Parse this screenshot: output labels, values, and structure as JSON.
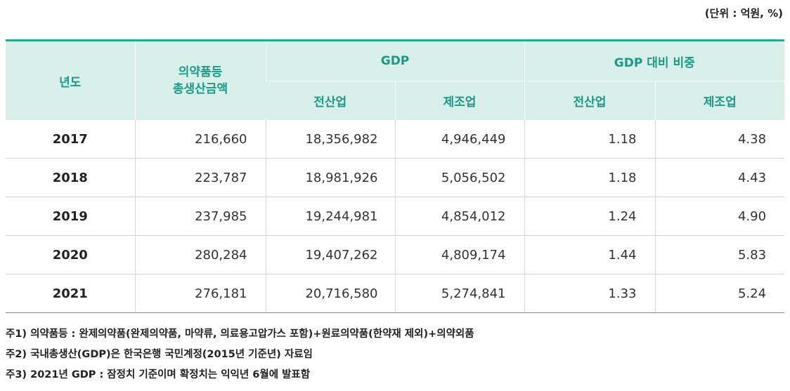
{
  "unit": "(단위 : 억원, %)",
  "table": {
    "headers": {
      "year": "년도",
      "pharma_line1": "의약품등",
      "pharma_line2": "총생산금액",
      "gdp": "GDP",
      "gdp_ratio": "GDP 대비 비중",
      "all_industry": "전산업",
      "manufacturing": "제조업"
    },
    "rows": [
      {
        "year": "2017",
        "pharma": "216,660",
        "gdp_all": "18,356,982",
        "gdp_mfg": "4,946,449",
        "ratio_all": "1.18",
        "ratio_mfg": "4.38"
      },
      {
        "year": "2018",
        "pharma": "223,787",
        "gdp_all": "18,981,926",
        "gdp_mfg": "5,056,502",
        "ratio_all": "1.18",
        "ratio_mfg": "4.43"
      },
      {
        "year": "2019",
        "pharma": "237,985",
        "gdp_all": "19,244,981",
        "gdp_mfg": "4,854,012",
        "ratio_all": "1.24",
        "ratio_mfg": "4.90"
      },
      {
        "year": "2020",
        "pharma": "280,284",
        "gdp_all": "19,407,262",
        "gdp_mfg": "4,809,174",
        "ratio_all": "1.44",
        "ratio_mfg": "5.83"
      },
      {
        "year": "2021",
        "pharma": "276,181",
        "gdp_all": "20,716,580",
        "gdp_mfg": "5,274,841",
        "ratio_all": "1.33",
        "ratio_mfg": "5.24"
      }
    ]
  },
  "notes": [
    "주1) 의약품등 : 완제의약품(완제의약품, 마약류, 의료용고압가스 포함)+원료의약품(한약재 제외)+의약외품",
    "주2) 국내총생산(GDP)은 한국은행 국민계정(2015년 기준년) 자료임",
    "주3) 2021년 GDP : 잠정치 기준이며 확정치는 익익년 6월에 발표함"
  ]
}
